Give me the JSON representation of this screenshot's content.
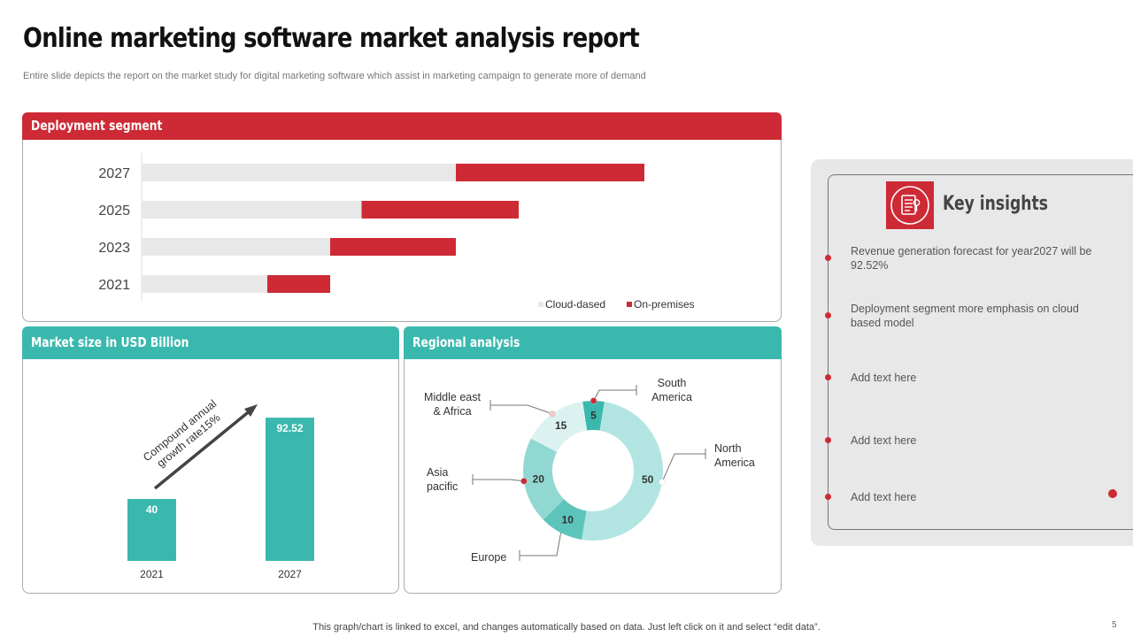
{
  "page": {
    "title": "Online marketing software market analysis report",
    "subtitle": "Entire slide depicts the report on the market study for digital marketing software which assist in marketing campaign to generate more of demand",
    "footer": "This graph/chart is linked to excel, and changes automatically based on data. Just left click on it and select “edit data”.",
    "page_number": "5"
  },
  "colors": {
    "red": "#cd2a36",
    "teal": "#3bb8ae",
    "light_teal": "#b2e5e1",
    "grey_bar": "#e8e8e8"
  },
  "panels": {
    "deployment": "Deployment segment",
    "market": "Market size in USD Billion",
    "regional": "Regional analysis"
  },
  "insights": {
    "title": "Key insights",
    "icon": "report-icon",
    "items": [
      "Revenue generation forecast for year2027 will be 92.52%",
      "Deployment segment more emphasis on cloud based model",
      "Add text here",
      "Add text here",
      "Add text here"
    ]
  },
  "chart_data": [
    {
      "type": "bar",
      "orientation": "horizontal",
      "stacked": true,
      "categories": [
        "2027",
        "2025",
        "2023",
        "2021"
      ],
      "series": [
        {
          "name": "Cloud-dased",
          "values": [
            50,
            35,
            30,
            20
          ],
          "color": "#e8e8e8"
        },
        {
          "name": "On-premises",
          "values": [
            30,
            25,
            20,
            10
          ],
          "color": "#cd2a36"
        }
      ],
      "xlim": [
        0,
        100
      ],
      "legend": "bottom-right"
    },
    {
      "type": "bar",
      "categories": [
        "2021",
        "2027"
      ],
      "values": [
        40,
        92.52
      ],
      "data_labels": [
        "40",
        "92.52"
      ],
      "ylim": [
        0,
        100
      ],
      "annotation": "Compound annual growth rate15%"
    },
    {
      "type": "pie",
      "donut": true,
      "labels": [
        "South America",
        "North America",
        "Europe",
        "Asia pacific",
        "Middle east & Africa"
      ],
      "values": [
        5,
        50,
        10,
        20,
        15
      ],
      "colors": [
        "#3bb8ae",
        "#b2e5e1",
        "#5cc4bb",
        "#92d8d2",
        "#dcf2f0"
      ]
    }
  ]
}
